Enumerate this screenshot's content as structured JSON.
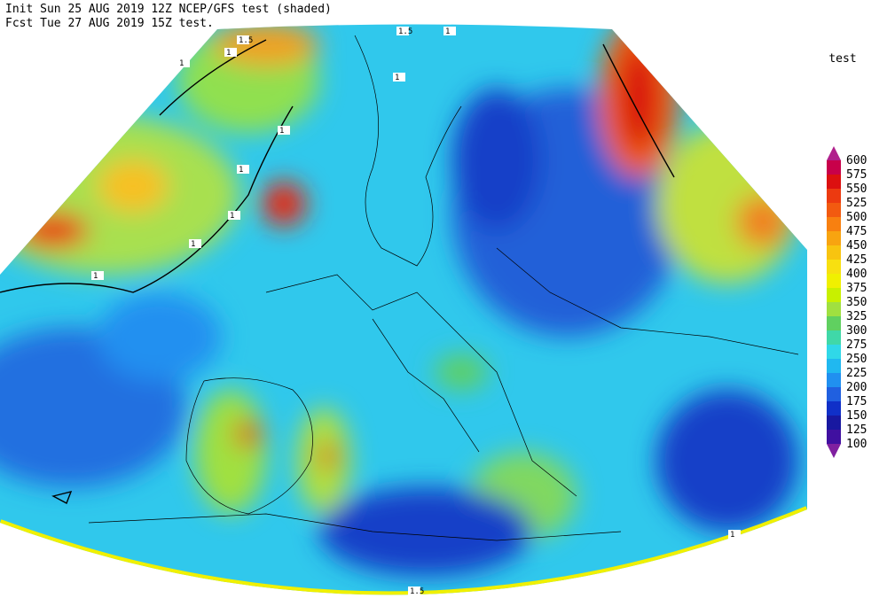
{
  "header": {
    "line1": "Init  Sun 25 AUG 2019 12Z  NCEP/GFS test (shaded)",
    "line2": "Fcst Tue 27 AUG 2019 15Z  test."
  },
  "legend": {
    "title": "test",
    "levels": [
      600,
      575,
      550,
      525,
      500,
      475,
      450,
      425,
      400,
      375,
      350,
      325,
      300,
      275,
      250,
      225,
      200,
      175,
      150,
      125,
      100
    ],
    "colors": [
      "#b0208c",
      "#c8004a",
      "#dc1010",
      "#ec3a10",
      "#f25a10",
      "#f88010",
      "#f8a410",
      "#f8c410",
      "#f8e010",
      "#f0f000",
      "#c8f000",
      "#a0e040",
      "#60d060",
      "#40d8a8",
      "#30d8e8",
      "#20b8f0",
      "#2090f0",
      "#2060e0",
      "#1030c8",
      "#1818a0",
      "#4010a0",
      "#8020a0"
    ]
  },
  "contour_labels": [
    "1.5",
    "1",
    "1",
    "1.5",
    "1",
    "1",
    "1",
    "1",
    "1",
    "1",
    "1",
    "1.5",
    "1"
  ]
}
